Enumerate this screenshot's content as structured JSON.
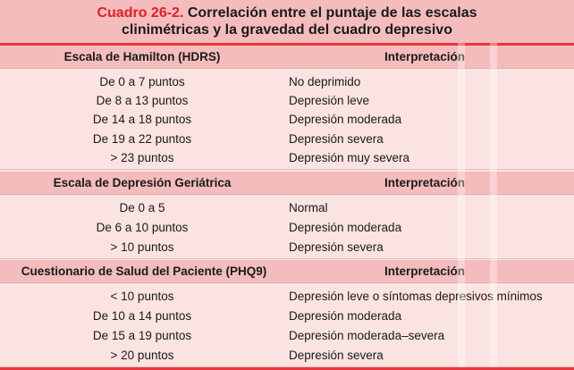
{
  "title": {
    "number": "Cuadro 26-2.",
    "line1_rest": " Correlación entre el puntaje de las escalas",
    "line2": "clinimétricas y la gravedad del cuadro depresivo"
  },
  "sections": [
    {
      "header_left": "Escala de Hamilton (HDRS)",
      "header_right": "Interpretación",
      "rows": [
        {
          "score": "De 0 a 7 puntos",
          "interpretation": "No deprimido"
        },
        {
          "score": "De 8 a 13 puntos",
          "interpretation": "Depresión leve"
        },
        {
          "score": "De 14 a 18 puntos",
          "interpretation": "Depresión moderada"
        },
        {
          "score": "De 19 a 22 puntos",
          "interpretation": "Depresión severa"
        },
        {
          "score": "> 23 puntos",
          "interpretation": "Depresión muy severa"
        }
      ]
    },
    {
      "header_left": "Escala de Depresión Geriátrica",
      "header_right": "Interpretación",
      "rows": [
        {
          "score": "De 0 a 5",
          "interpretation": "Normal"
        },
        {
          "score": "De 6 a 10 puntos",
          "interpretation": "Depresión moderada"
        },
        {
          "score": "> 10 puntos",
          "interpretation": "Depresión severa"
        }
      ]
    },
    {
      "header_left": "Cuestionario de Salud del Paciente (PHQ9)",
      "header_right": "Interpretación",
      "rows": [
        {
          "score": "< 10 puntos",
          "interpretation": "Depresión leve o síntomas depresivos mínimos"
        },
        {
          "score": "De 10 a 14 puntos",
          "interpretation": "Depresión moderada"
        },
        {
          "score": "De 15 a 19 puntos",
          "interpretation": "Depresión moderada–severa"
        },
        {
          "score": "> 20 puntos",
          "interpretation": "Depresión severa"
        }
      ]
    }
  ]
}
